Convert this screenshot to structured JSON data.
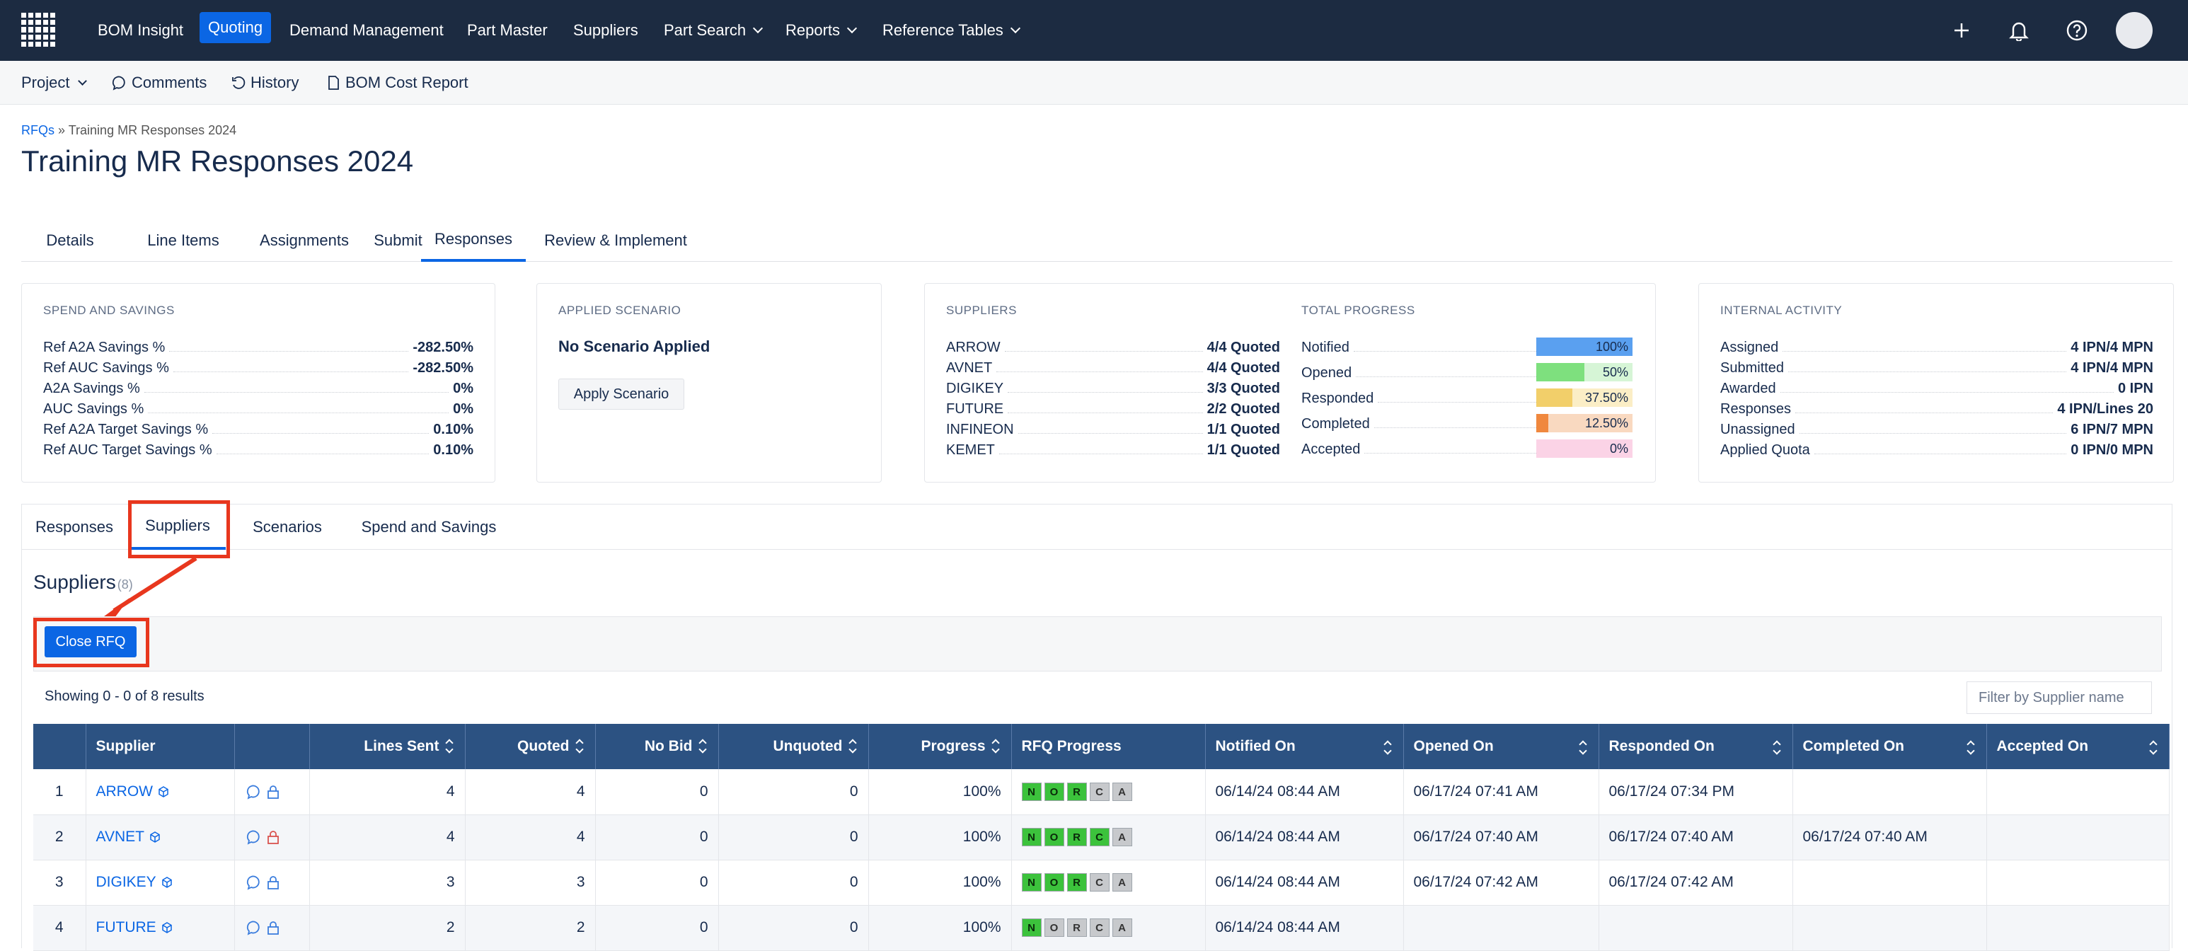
{
  "nav": {
    "items": [
      "BOM Insight",
      "Quoting",
      "Demand Management",
      "Part Master",
      "Suppliers",
      "Part Search",
      "Reports",
      "Reference Tables"
    ],
    "active": "Quoting"
  },
  "subnav": {
    "project": "Project",
    "comments": "Comments",
    "history": "History",
    "bom_cost_report": "BOM Cost Report"
  },
  "breadcrumb": {
    "root": "RFQs",
    "sep": "»",
    "current": "Training MR Responses 2024"
  },
  "title": "Training MR Responses 2024",
  "tabs": [
    "Details",
    "Line Items",
    "Assignments",
    "Submit",
    "Responses",
    "Review & Implement"
  ],
  "spend": {
    "header": "SPEND AND SAVINGS",
    "rows": [
      {
        "label": "Ref A2A Savings %",
        "value": "-282.50%"
      },
      {
        "label": "Ref AUC Savings %",
        "value": "-282.50%"
      },
      {
        "label": "A2A Savings %",
        "value": "0%"
      },
      {
        "label": "AUC Savings %",
        "value": "0%"
      },
      {
        "label": "Ref A2A Target Savings %",
        "value": "0.10%"
      },
      {
        "label": "Ref AUC Target Savings %",
        "value": "0.10%"
      }
    ]
  },
  "scenario": {
    "header": "APPLIED SCENARIO",
    "status": "No Scenario Applied",
    "button": "Apply Scenario"
  },
  "suppliers_card": {
    "header": "SUPPLIERS",
    "rows": [
      {
        "label": "ARROW",
        "value": "4/4 Quoted"
      },
      {
        "label": "AVNET",
        "value": "4/4 Quoted"
      },
      {
        "label": "DIGIKEY",
        "value": "3/3 Quoted"
      },
      {
        "label": "FUTURE",
        "value": "2/2 Quoted"
      },
      {
        "label": "INFINEON",
        "value": "1/1 Quoted"
      },
      {
        "label": "KEMET",
        "value": "1/1 Quoted"
      }
    ]
  },
  "progress": {
    "header": "TOTAL PROGRESS",
    "rows": [
      {
        "label": "Notified",
        "value": "100%",
        "fraction": 1.0,
        "color": "#5aa0f0",
        "bg": "#cfe2fb"
      },
      {
        "label": "Opened",
        "value": "50%",
        "fraction": 0.5,
        "color": "#7ee07e",
        "bg": "#d6f5d6"
      },
      {
        "label": "Responded",
        "value": "37.50%",
        "fraction": 0.375,
        "color": "#f2cf6a",
        "bg": "#fbeec6"
      },
      {
        "label": "Completed",
        "value": "12.50%",
        "fraction": 0.125,
        "color": "#f0883e",
        "bg": "#f9d9c0"
      },
      {
        "label": "Accepted",
        "value": "0%",
        "fraction": 0,
        "color": "#f7b6d6",
        "bg": "#fbd3e6"
      }
    ]
  },
  "internal": {
    "header": "INTERNAL ACTIVITY",
    "rows": [
      {
        "label": "Assigned",
        "value": "4 IPN/4 MPN"
      },
      {
        "label": "Submitted",
        "value": "4 IPN/4 MPN"
      },
      {
        "label": "Awarded",
        "value": "0 IPN"
      },
      {
        "label": "Responses",
        "value": "4 IPN/Lines 20"
      },
      {
        "label": "Unassigned",
        "value": "6 IPN/7 MPN"
      },
      {
        "label": "Applied Quota",
        "value": "0 IPN/0 MPN"
      }
    ]
  },
  "inner_tabs": [
    "Responses",
    "Suppliers",
    "Scenarios",
    "Spend and Savings"
  ],
  "section_title": "Suppliers",
  "section_suffix": "(8)",
  "close_rfq": "Close RFQ",
  "showing": "Showing 0 - 0 of 8 results",
  "filter_placeholder": "Filter by Supplier name",
  "table": {
    "headers": [
      "",
      "Supplier",
      "",
      "Lines Sent",
      "Quoted",
      "No Bid",
      "Unquoted",
      "Progress",
      "RFQ Progress",
      "Notified On",
      "Opened On",
      "Responded On",
      "Completed On",
      "Accepted On"
    ],
    "rows": [
      {
        "n": "1",
        "supplier": "ARROW",
        "lines": "4",
        "quoted": "4",
        "nobid": "0",
        "unquoted": "0",
        "progress": "100%",
        "flags": [
          1,
          1,
          1,
          0,
          0
        ],
        "notified": "06/14/24 08:44 AM",
        "opened": "06/17/24 07:41 AM",
        "responded": "06/17/24 07:34 PM",
        "completed": "",
        "accepted": "",
        "lock": "#3b7ddd"
      },
      {
        "n": "2",
        "supplier": "AVNET",
        "lines": "4",
        "quoted": "4",
        "nobid": "0",
        "unquoted": "0",
        "progress": "100%",
        "flags": [
          1,
          1,
          1,
          1,
          0
        ],
        "notified": "06/14/24 08:44 AM",
        "opened": "06/17/24 07:40 AM",
        "responded": "06/17/24 07:40 AM",
        "completed": "06/17/24 07:40 AM",
        "accepted": "",
        "lock": "#d9534f"
      },
      {
        "n": "3",
        "supplier": "DIGIKEY",
        "lines": "3",
        "quoted": "3",
        "nobid": "0",
        "unquoted": "0",
        "progress": "100%",
        "flags": [
          1,
          1,
          1,
          0,
          0
        ],
        "notified": "06/14/24 08:44 AM",
        "opened": "06/17/24 07:42 AM",
        "responded": "06/17/24 07:42 AM",
        "completed": "",
        "accepted": "",
        "lock": "#3b7ddd"
      },
      {
        "n": "4",
        "supplier": "FUTURE",
        "lines": "2",
        "quoted": "2",
        "nobid": "0",
        "unquoted": "0",
        "progress": "100%",
        "flags": [
          1,
          0,
          0,
          0,
          0
        ],
        "notified": "06/14/24 08:44 AM",
        "opened": "",
        "responded": "",
        "completed": "",
        "accepted": "",
        "lock": "#3b7ddd"
      }
    ],
    "flag_letters": [
      "N",
      "O",
      "R",
      "C",
      "A"
    ]
  }
}
